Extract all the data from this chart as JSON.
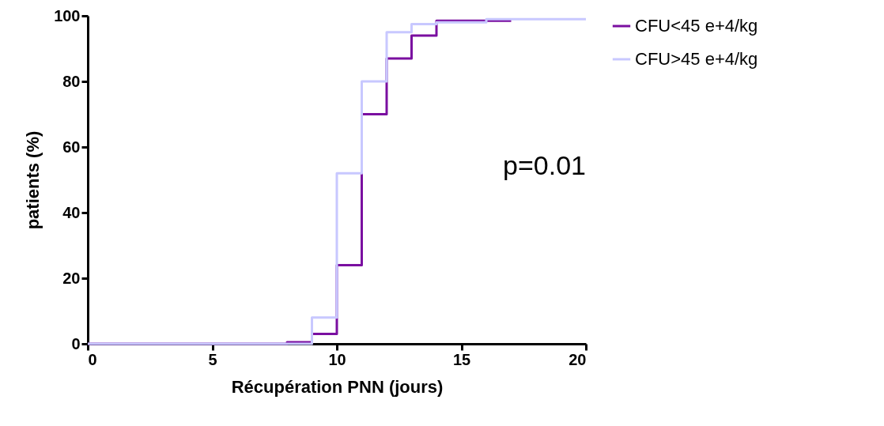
{
  "chart_data": {
    "type": "step",
    "xlabel": "Récupération PNN (jours)",
    "ylabel": "patients (%)",
    "series": [
      {
        "name": "CFU<45  e+4/kg",
        "color": "#7a0fa0",
        "x": [
          0,
          8,
          9,
          10,
          11,
          12,
          13,
          14,
          17
        ],
        "values": [
          0,
          0.5,
          3,
          24,
          70,
          87,
          94,
          98.5,
          98.5
        ]
      },
      {
        "name": "CFU>45  e+4/kg",
        "color": "#c8c8ff",
        "x": [
          0,
          9,
          10,
          11,
          12,
          13,
          14,
          16,
          20
        ],
        "values": [
          0,
          8,
          52,
          80,
          95,
          97.5,
          98,
          99,
          99
        ]
      }
    ],
    "xlim": [
      0,
      20
    ],
    "xticks": [
      0,
      5,
      10,
      15,
      20
    ],
    "ylim": [
      0,
      100
    ],
    "yticks": [
      0,
      20,
      40,
      60,
      80,
      100
    ],
    "grid": false,
    "legend": "right",
    "annotations": [
      "p=0.01"
    ]
  }
}
